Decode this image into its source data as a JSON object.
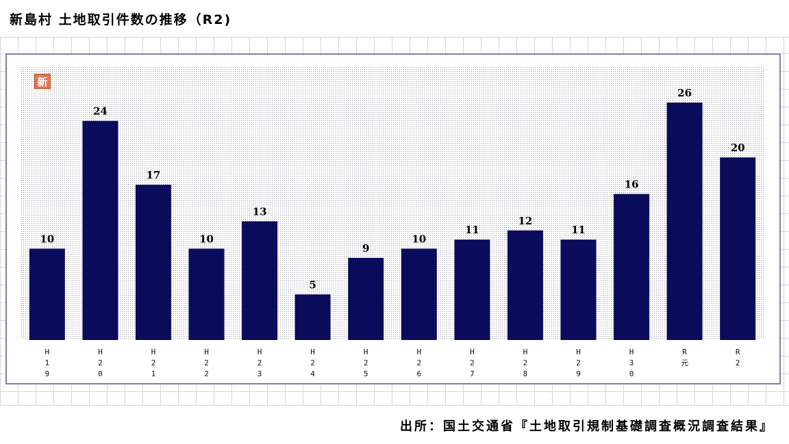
{
  "header": {
    "title": "新島村 土地取引件数の推移（R2)"
  },
  "badge": {
    "label": "新",
    "color": "#e2774a"
  },
  "footer": {
    "source": "出所：国土交通省『土地取引規制基礎調査概況調査結果』"
  },
  "chart_data": {
    "type": "bar",
    "title": "新島村 土地取引件数の推移（R2)",
    "xlabel": "",
    "ylabel": "",
    "categories": [
      "H19",
      "H20",
      "H21",
      "H22",
      "H23",
      "H24",
      "H25",
      "H26",
      "H27",
      "H28",
      "H29",
      "H30",
      "R元",
      "R2"
    ],
    "values": [
      10,
      24,
      17,
      10,
      13,
      5,
      9,
      10,
      11,
      12,
      11,
      16,
      26,
      20
    ],
    "ylim": [
      0,
      26
    ],
    "grid": false,
    "legend": "none",
    "colors": {
      "bar": "#0b0b5c",
      "plot_area_dots": "#8a8a96",
      "frame": "#7d7cae"
    }
  }
}
